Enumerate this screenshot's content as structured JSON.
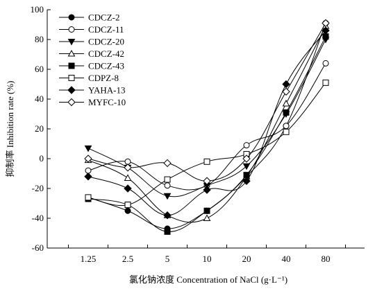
{
  "chart_data": {
    "type": "line",
    "xlabel": "氯化钠浓度 Concentration of NaCl (g·L⁻¹)",
    "ylabel": "抑制率 Inhibition rate (%)",
    "categories": [
      "1.25",
      "2.5",
      "5",
      "10",
      "20",
      "40",
      "80"
    ],
    "yticks": [
      "100",
      "80",
      "60",
      "40",
      "20",
      "0",
      "-20",
      "-40",
      "-60"
    ],
    "ylim": [
      -60,
      100
    ],
    "grid": false,
    "legend_position": "top-left",
    "series": [
      {
        "name": "CDCZ-2",
        "marker": "circle-filled",
        "values": [
          -26,
          -35,
          -47,
          -35,
          -12,
          22,
          91
        ]
      },
      {
        "name": "CDCZ-11",
        "marker": "circle-open",
        "values": [
          -8,
          -2,
          -18,
          -18,
          9,
          22,
          64
        ]
      },
      {
        "name": "CDCZ-20",
        "marker": "triangle-down-filled",
        "values": [
          7,
          -6,
          -25,
          -18,
          -5,
          30,
          80
        ]
      },
      {
        "name": "CDCZ-42",
        "marker": "triangle-up-open",
        "values": [
          -1,
          -13,
          -38,
          -40,
          -12,
          37,
          89
        ]
      },
      {
        "name": "CDCZ-43",
        "marker": "square-filled",
        "values": [
          -27,
          -31,
          -49,
          -35,
          -11,
          31,
          82
        ]
      },
      {
        "name": "CDPZ-8",
        "marker": "square-open",
        "values": [
          -26,
          -31,
          -14,
          -2,
          3,
          18,
          51
        ]
      },
      {
        "name": "YAHA-13",
        "marker": "diamond-filled",
        "values": [
          -12,
          -20,
          -38,
          -21,
          -15,
          50,
          86
        ]
      },
      {
        "name": "MYFC-10",
        "marker": "diamond-open",
        "values": [
          0,
          -6,
          -3,
          -15,
          0,
          45,
          91
        ]
      }
    ]
  }
}
